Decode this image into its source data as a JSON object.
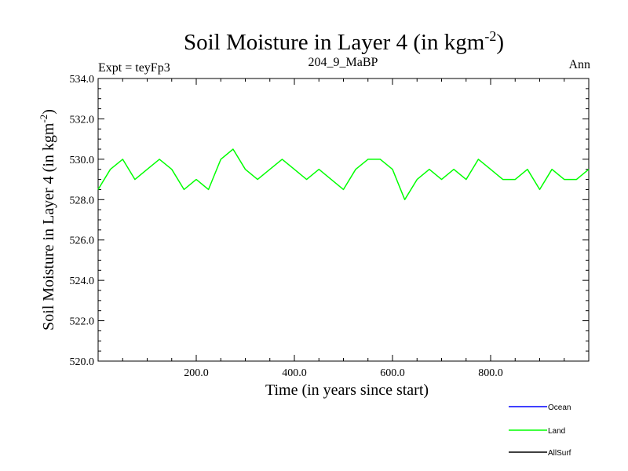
{
  "chart_data": {
    "type": "line",
    "title": "Soil Moisture in Layer 4 (in kgm",
    "title_sup": "-2",
    "title_suffix": ")",
    "subtitle_left": "Expt = teyFp3",
    "subtitle_center": "204_9_MaBP",
    "subtitle_right": "Ann",
    "xlabel": "Time (in years since start)",
    "ylabel": "Soil Moisture in Layer 4 (in kgm",
    "ylabel_sup": "-2",
    "ylabel_suffix": ")",
    "xlim": [
      0,
      1000
    ],
    "ylim": [
      520.0,
      534.0
    ],
    "xticks": [
      200.0,
      400.0,
      600.0,
      800.0
    ],
    "xtick_labels": [
      "200.0",
      "400.0",
      "600.0",
      "800.0"
    ],
    "yticks": [
      520.0,
      522.0,
      524.0,
      526.0,
      528.0,
      530.0,
      532.0,
      534.0
    ],
    "ytick_labels": [
      "520.0",
      "522.0",
      "524.0",
      "526.0",
      "528.0",
      "530.0",
      "532.0",
      "534.0"
    ],
    "grid": false,
    "legend_position": "bottom-right",
    "series": [
      {
        "name": "Ocean",
        "color": "#0000ff",
        "x": [],
        "y": []
      },
      {
        "name": "Land",
        "color": "#00ff00",
        "x": [
          0,
          25,
          50,
          75,
          100,
          125,
          150,
          175,
          200,
          225,
          250,
          275,
          300,
          325,
          350,
          375,
          400,
          425,
          450,
          475,
          500,
          525,
          550,
          575,
          600,
          625,
          650,
          675,
          700,
          725,
          750,
          775,
          800,
          825,
          850,
          875,
          900,
          925,
          950,
          975,
          1000
        ],
        "y": [
          528.5,
          529.5,
          530.0,
          529.0,
          529.5,
          530.0,
          529.5,
          528.5,
          529.0,
          528.5,
          530.0,
          530.5,
          529.5,
          529.0,
          529.5,
          530.0,
          529.5,
          529.0,
          529.5,
          529.0,
          528.5,
          529.5,
          530.0,
          530.0,
          529.5,
          528.0,
          529.0,
          529.5,
          529.0,
          529.5,
          529.0,
          530.0,
          529.5,
          529.0,
          529.0,
          529.5,
          528.5,
          529.5,
          529.0,
          529.0,
          529.5
        ]
      },
      {
        "name": "AllSurf",
        "color": "#000000",
        "x": [],
        "y": []
      }
    ]
  }
}
